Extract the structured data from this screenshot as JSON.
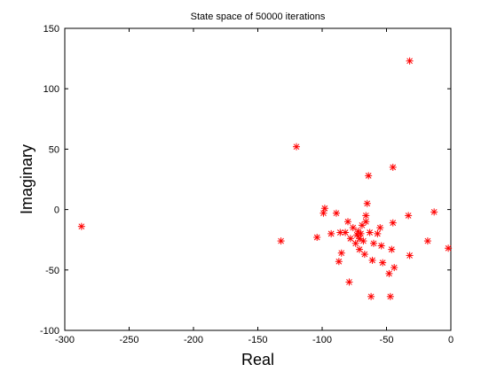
{
  "chart_data": {
    "type": "scatter",
    "title": "State space of 50000 iterations",
    "xlabel": "Real",
    "ylabel": "Imaginary",
    "xlim": [
      -300,
      0
    ],
    "ylim": [
      -100,
      150
    ],
    "xticks": [
      -300,
      -250,
      -200,
      -150,
      -100,
      -50,
      0
    ],
    "yticks": [
      -100,
      -50,
      0,
      50,
      100,
      150
    ],
    "grid": false,
    "legend": "none",
    "marker": "asterisk",
    "marker_color": "#ff0000",
    "points": [
      {
        "x": -287,
        "y": -14
      },
      {
        "x": -132,
        "y": -26
      },
      {
        "x": -120,
        "y": 52
      },
      {
        "x": -104,
        "y": -23
      },
      {
        "x": -98,
        "y": 1
      },
      {
        "x": -99,
        "y": -3
      },
      {
        "x": -93,
        "y": -20
      },
      {
        "x": -89,
        "y": -3
      },
      {
        "x": -87,
        "y": -43
      },
      {
        "x": -85,
        "y": -36
      },
      {
        "x": -86,
        "y": -19
      },
      {
        "x": -82,
        "y": -19
      },
      {
        "x": -80,
        "y": -10
      },
      {
        "x": -79,
        "y": -60
      },
      {
        "x": -78,
        "y": -24
      },
      {
        "x": -76,
        "y": -15
      },
      {
        "x": -74,
        "y": -28
      },
      {
        "x": -73,
        "y": -21
      },
      {
        "x": -72,
        "y": -18
      },
      {
        "x": -71,
        "y": -24
      },
      {
        "x": -70,
        "y": -20
      },
      {
        "x": -71,
        "y": -33
      },
      {
        "x": -69,
        "y": -13
      },
      {
        "x": -68,
        "y": -26
      },
      {
        "x": -67,
        "y": -37
      },
      {
        "x": -66,
        "y": -10
      },
      {
        "x": -66,
        "y": -5
      },
      {
        "x": -65,
        "y": 5
      },
      {
        "x": -64,
        "y": 28
      },
      {
        "x": -63,
        "y": -19
      },
      {
        "x": -62,
        "y": -72
      },
      {
        "x": -61,
        "y": -42
      },
      {
        "x": -60,
        "y": -28
      },
      {
        "x": -57,
        "y": -20
      },
      {
        "x": -55,
        "y": -15
      },
      {
        "x": -54,
        "y": -30
      },
      {
        "x": -53,
        "y": -44
      },
      {
        "x": -48,
        "y": -53
      },
      {
        "x": -47,
        "y": -72
      },
      {
        "x": -46,
        "y": -33
      },
      {
        "x": -45,
        "y": -11
      },
      {
        "x": -45,
        "y": 35
      },
      {
        "x": -44,
        "y": -48
      },
      {
        "x": -33,
        "y": -5
      },
      {
        "x": -32,
        "y": 123
      },
      {
        "x": -32,
        "y": -38
      },
      {
        "x": -18,
        "y": -26
      },
      {
        "x": -13,
        "y": -2
      },
      {
        "x": -2,
        "y": -32
      }
    ]
  }
}
